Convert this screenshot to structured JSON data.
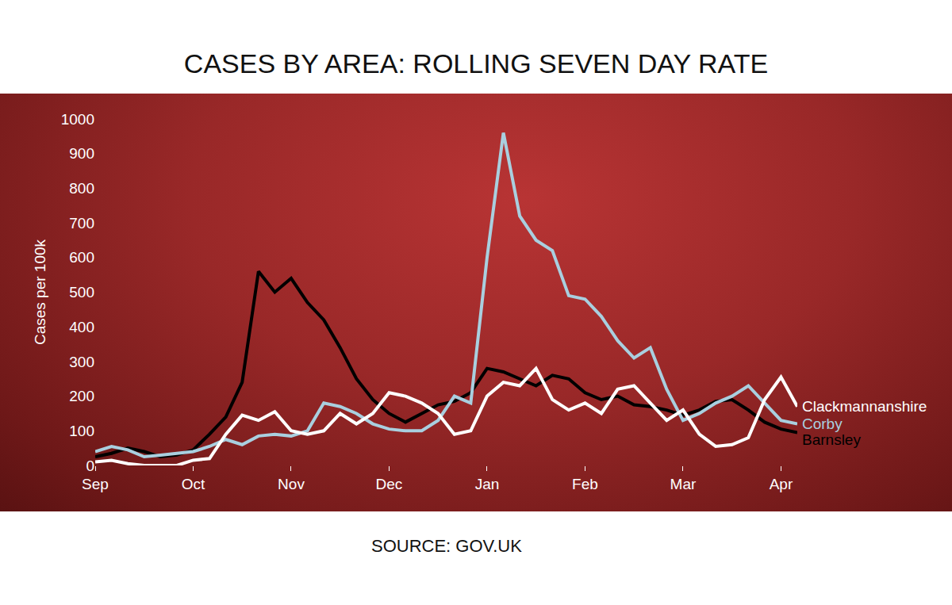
{
  "chart_data": {
    "type": "line",
    "title": "CASES BY AREA: ROLLING SEVEN DAY RATE",
    "y_label": "Cases per 100k",
    "source": "SOURCE: GOV.UK",
    "categories": [
      "Sep",
      null,
      null,
      null,
      null,
      null,
      "Oct",
      null,
      null,
      null,
      null,
      null,
      "Nov",
      null,
      null,
      null,
      null,
      null,
      "Dec",
      null,
      null,
      null,
      null,
      null,
      "Jan",
      null,
      null,
      null,
      null,
      null,
      "Feb",
      null,
      null,
      null,
      null,
      null,
      "Mar",
      null,
      null,
      null,
      null,
      null,
      "Apr",
      null
    ],
    "series": [
      {
        "name": "Clackmannanshire",
        "color": "#ffffff",
        "values": [
          10,
          15,
          5,
          0,
          0,
          0,
          15,
          20,
          90,
          145,
          130,
          155,
          100,
          90,
          100,
          150,
          120,
          150,
          210,
          200,
          180,
          150,
          90,
          100,
          200,
          240,
          230,
          280,
          190,
          160,
          180,
          150,
          220,
          230,
          180,
          130,
          160,
          90,
          55,
          60,
          80,
          190,
          255,
          170
        ]
      },
      {
        "name": "Corby",
        "color": "#a9cfdf",
        "values": [
          40,
          55,
          45,
          25,
          30,
          35,
          40,
          55,
          75,
          60,
          85,
          90,
          85,
          100,
          180,
          170,
          150,
          120,
          105,
          100,
          100,
          130,
          200,
          180,
          600,
          960,
          720,
          650,
          620,
          490,
          480,
          430,
          360,
          310,
          340,
          220,
          130,
          150,
          180,
          200,
          230,
          180,
          130,
          120
        ]
      },
      {
        "name": "Barnsley",
        "color": "#000000",
        "values": [
          25,
          35,
          50,
          40,
          25,
          30,
          45,
          90,
          140,
          240,
          560,
          500,
          540,
          470,
          420,
          340,
          250,
          190,
          150,
          125,
          150,
          175,
          185,
          210,
          280,
          270,
          250,
          230,
          260,
          250,
          210,
          190,
          200,
          175,
          170,
          160,
          145,
          160,
          185,
          190,
          160,
          125,
          105,
          95
        ]
      }
    ],
    "ylim": [
      0,
      1000
    ],
    "yticks": [
      0,
      100,
      200,
      300,
      400,
      500,
      600,
      700,
      800,
      900,
      1000
    ],
    "grid": false
  }
}
